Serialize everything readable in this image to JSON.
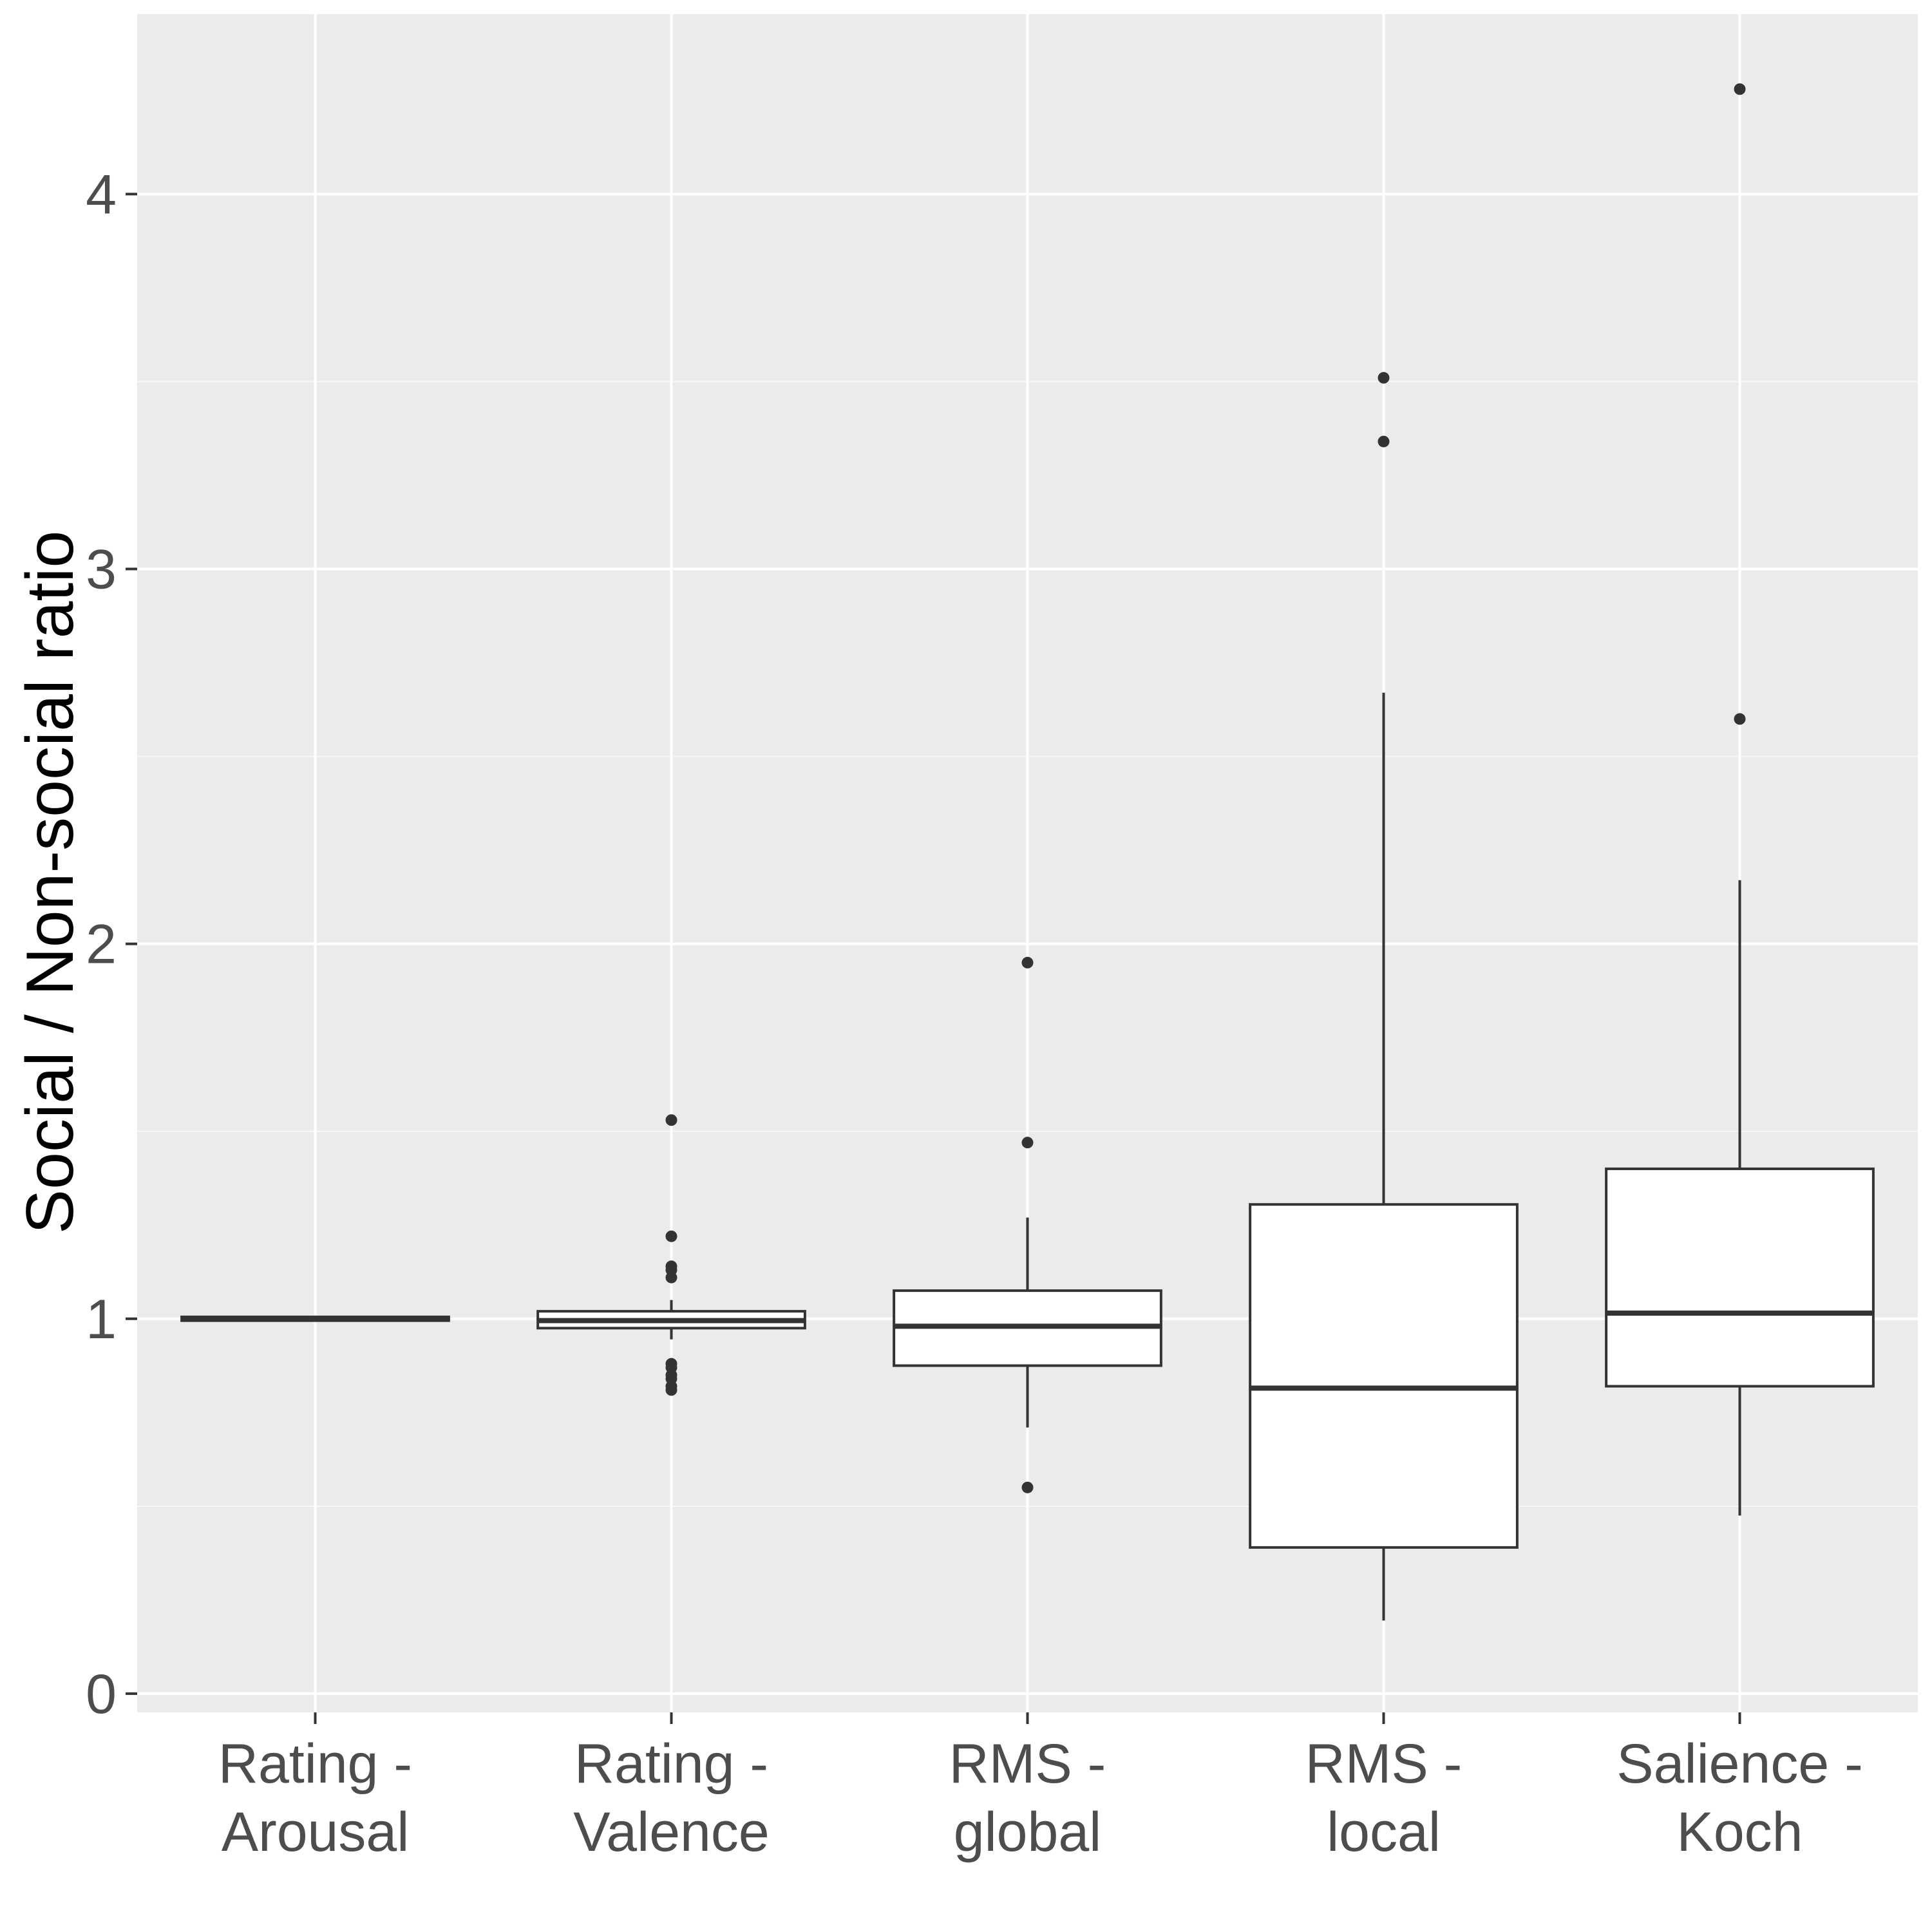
{
  "chart_data": {
    "type": "box",
    "title": "",
    "xlabel": "",
    "ylabel": "Social / Non-social ratio",
    "ylim": [
      -0.05,
      4.48
    ],
    "yticks": [
      0,
      1,
      2,
      3,
      4
    ],
    "y_minor_grid": [
      0.5,
      1.5,
      2.5,
      3.5
    ],
    "grid": true,
    "legend": "none",
    "categories": [
      [
        "Rating -",
        "Arousal"
      ],
      [
        "Rating -",
        "Valence"
      ],
      [
        "RMS -",
        "global"
      ],
      [
        "RMS -",
        "local"
      ],
      [
        "Salience -",
        "Koch"
      ]
    ],
    "boxes": [
      {
        "q1": 0.995,
        "median": 1.0,
        "q3": 1.005,
        "whisker_low": 0.995,
        "whisker_high": 1.005,
        "outliers": []
      },
      {
        "q1": 0.975,
        "median": 0.995,
        "q3": 1.02,
        "whisker_low": 0.945,
        "whisker_high": 1.05,
        "outliers": [
          1.53,
          1.22,
          1.14,
          1.13,
          1.11,
          0.88,
          0.87,
          0.85,
          0.84,
          0.82,
          0.81
        ]
      },
      {
        "q1": 0.875,
        "median": 0.98,
        "q3": 1.075,
        "whisker_low": 0.71,
        "whisker_high": 1.27,
        "outliers": [
          1.95,
          1.47,
          0.55
        ]
      },
      {
        "q1": 0.39,
        "median": 0.815,
        "q3": 1.305,
        "whisker_low": 0.195,
        "whisker_high": 2.67,
        "outliers": [
          3.51,
          3.34
        ]
      },
      {
        "q1": 0.82,
        "median": 1.015,
        "q3": 1.4,
        "whisker_low": 0.475,
        "whisker_high": 2.17,
        "outliers": [
          4.28,
          2.6
        ]
      }
    ]
  },
  "colors": {
    "panel_background": "#ebebeb",
    "grid_major": "#ffffff",
    "grid_minor": "#f7f7f7",
    "box_fill": "#ffffff",
    "box_line": "#333333",
    "tick_text": "#4d4d4d",
    "axis_title": "#000000"
  }
}
